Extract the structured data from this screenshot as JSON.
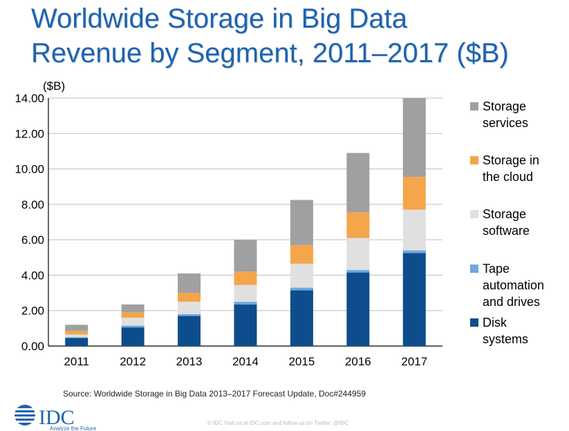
{
  "title_line1": "Worldwide Storage in Big Data",
  "title_line2": "Revenue by Segment, 2011–2017 ($B)",
  "source": "Source: Worldwide Storage in Big Data 2013–2017 Forecast Update, Doc#244959",
  "logo": {
    "text": "IDC",
    "tagline": "Analyze the Future"
  },
  "footer": "© IDC   Visit us at IDC.com and follow us on Twitter: @IDC",
  "colors": {
    "title": "#1f63ad",
    "disk": "#0e4d8c",
    "tape": "#6fa8dc",
    "software": "#e0e0e0",
    "cloud": "#f5a54a",
    "services": "#a0a0a0"
  },
  "chart_data": {
    "type": "bar",
    "stacked": true,
    "title": "Worldwide Storage in Big Data Revenue by Segment, 2011–2017 ($B)",
    "ylabel": "($B)",
    "xlabel": "",
    "categories": [
      "2011",
      "2012",
      "2013",
      "2014",
      "2015",
      "2016",
      "2017"
    ],
    "yticks": [
      "0.00",
      "2.00",
      "4.00",
      "6.00",
      "8.00",
      "10.00",
      "12.00",
      "14.00"
    ],
    "ylim": [
      0,
      14
    ],
    "grid": true,
    "legend_position": "right",
    "series": [
      {
        "name": "Disk systems",
        "color": "#0e4d8c",
        "values": [
          0.45,
          1.05,
          1.7,
          2.35,
          3.15,
          4.15,
          5.25
        ],
        "legend_lines": [
          "Disk",
          "systems"
        ]
      },
      {
        "name": "Tape automation and drives",
        "color": "#6fa8dc",
        "values": [
          0.05,
          0.1,
          0.1,
          0.15,
          0.15,
          0.15,
          0.15
        ],
        "legend_lines": [
          "Tape",
          "automation",
          "and drives"
        ]
      },
      {
        "name": "Storage software",
        "color": "#e0e0e0",
        "values": [
          0.15,
          0.45,
          0.7,
          0.95,
          1.35,
          1.8,
          2.3
        ],
        "legend_lines": [
          "Storage",
          "software"
        ]
      },
      {
        "name": "Storage in the cloud",
        "color": "#f5a54a",
        "values": [
          0.2,
          0.3,
          0.5,
          0.75,
          1.05,
          1.45,
          1.85
        ],
        "legend_lines": [
          "Storage in",
          "the cloud"
        ]
      },
      {
        "name": "Storage services",
        "color": "#a0a0a0",
        "values": [
          0.35,
          0.45,
          1.1,
          1.8,
          2.55,
          3.35,
          4.45
        ],
        "legend_lines": [
          "Storage",
          "services"
        ]
      }
    ]
  }
}
